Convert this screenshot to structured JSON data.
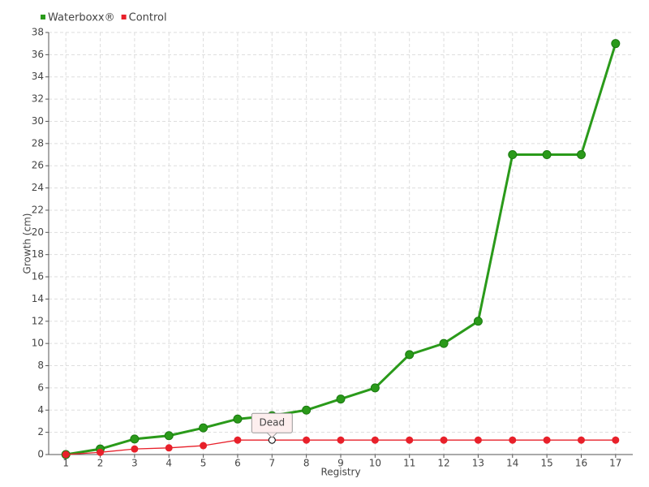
{
  "chart_data": {
    "type": "line",
    "x": [
      1,
      2,
      3,
      4,
      5,
      6,
      7,
      8,
      9,
      10,
      11,
      12,
      13,
      14,
      15,
      16,
      17
    ],
    "series": [
      {
        "name": "Waterboxx®",
        "color": "#2a9a1a",
        "values": [
          0,
          0.5,
          1.4,
          1.7,
          2.4,
          3.2,
          3.5,
          4,
          5,
          6,
          9,
          10,
          12,
          27,
          27,
          27,
          37
        ]
      },
      {
        "name": "Control",
        "color": "#e8202a",
        "values": [
          0,
          0.2,
          0.5,
          0.6,
          0.8,
          1.3,
          1.3,
          1.3,
          1.3,
          1.3,
          1.3,
          1.3,
          1.3,
          1.3,
          1.3,
          1.3,
          1.3
        ]
      }
    ],
    "xlabel": "Registry",
    "ylabel": "Growth (cm)",
    "xlim": [
      0.5,
      17.5
    ],
    "xticks": [
      1,
      2,
      3,
      4,
      5,
      6,
      7,
      8,
      9,
      10,
      11,
      12,
      13,
      14,
      15,
      16,
      17
    ],
    "ylim": [
      0,
      38
    ],
    "yticks": [
      0,
      2,
      4,
      6,
      8,
      10,
      12,
      14,
      16,
      18,
      20,
      22,
      24,
      26,
      28,
      30,
      32,
      34,
      36,
      38
    ],
    "grid": true,
    "legend": "top-left",
    "annotations": [
      {
        "text": "Dead",
        "x": 7,
        "y": 1.3
      }
    ]
  }
}
